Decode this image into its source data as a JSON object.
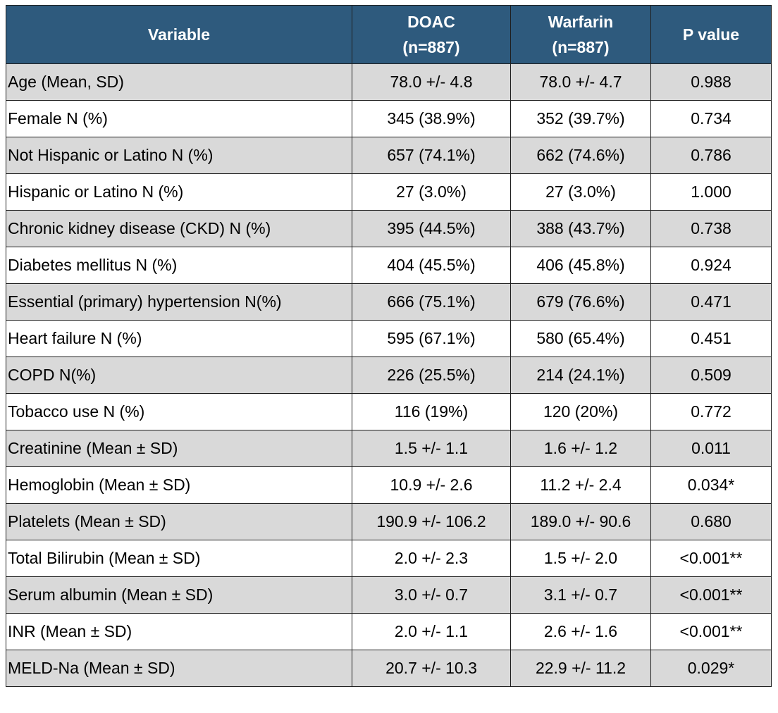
{
  "table": {
    "headers": [
      {
        "line1": "Variable",
        "line2": ""
      },
      {
        "line1": "DOAC",
        "line2": "(n=887)"
      },
      {
        "line1": "Warfarin",
        "line2": "(n=887)"
      },
      {
        "line1": "P value",
        "line2": ""
      }
    ],
    "rows": [
      {
        "variable": "Age (Mean, SD)",
        "doac": "78.0 +/- 4.8",
        "warfarin": "78.0 +/- 4.7",
        "p": "0.988"
      },
      {
        "variable": "Female N (%)",
        "doac": "345 (38.9%)",
        "warfarin": "352 (39.7%)",
        "p": "0.734"
      },
      {
        "variable": "Not Hispanic or Latino N (%)",
        "doac": "657 (74.1%)",
        "warfarin": "662 (74.6%)",
        "p": "0.786"
      },
      {
        "variable": "Hispanic or Latino N (%)",
        "doac": "27 (3.0%)",
        "warfarin": "27 (3.0%)",
        "p": "1.000"
      },
      {
        "variable": "Chronic kidney disease (CKD) N (%)",
        "doac": "395 (44.5%)",
        "warfarin": "388 (43.7%)",
        "p": "0.738"
      },
      {
        "variable": "Diabetes mellitus N (%)",
        "doac": "404 (45.5%)",
        "warfarin": "406 (45.8%)",
        "p": "0.924"
      },
      {
        "variable": "Essential (primary) hypertension N(%)",
        "doac": "666 (75.1%)",
        "warfarin": "679 (76.6%)",
        "p": "0.471"
      },
      {
        "variable": "Heart failure N (%)",
        "doac": "595 (67.1%)",
        "warfarin": "580 (65.4%)",
        "p": "0.451"
      },
      {
        "variable": "COPD N(%)",
        "doac": "226 (25.5%)",
        "warfarin": "214 (24.1%)",
        "p": "0.509"
      },
      {
        "variable": "Tobacco use N (%)",
        "doac": "116 (19%)",
        "warfarin": "120 (20%)",
        "p": "0.772"
      },
      {
        "variable": "Creatinine (Mean  ±  SD)",
        "doac": "1.5 +/- 1.1",
        "warfarin": "1.6 +/- 1.2",
        "p": "0.011"
      },
      {
        "variable": "Hemoglobin (Mean  ±  SD)",
        "doac": "10.9 +/- 2.6",
        "warfarin": "11.2 +/- 2.4",
        "p": "0.034*"
      },
      {
        "variable": "Platelets (Mean  ±  SD)",
        "doac": "190.9 +/- 106.2",
        "warfarin": "189.0 +/- 90.6",
        "p": "0.680"
      },
      {
        "variable": "Total Bilirubin (Mean  ±  SD)",
        "doac": "2.0 +/- 2.3",
        "warfarin": "1.5 +/- 2.0",
        "p": "<0.001**"
      },
      {
        "variable": "Serum albumin (Mean  ±  SD)",
        "doac": "3.0 +/- 0.7",
        "warfarin": "3.1 +/- 0.7",
        "p": "<0.001**"
      },
      {
        "variable": "INR (Mean  ±  SD)",
        "doac": "2.0 +/- 1.1",
        "warfarin": "2.6 +/- 1.6",
        "p": "<0.001**"
      },
      {
        "variable": "MELD-Na (Mean ± SD)",
        "doac": "20.7 +/- 10.3",
        "warfarin": "22.9 +/- 11.2",
        "p": "0.029*"
      }
    ]
  },
  "colors": {
    "header_bg": "#2e5a7d",
    "header_text": "#ffffff",
    "shaded_row": "#d9d9d9",
    "plain_row": "#ffffff",
    "border": "#1f1f1f"
  }
}
